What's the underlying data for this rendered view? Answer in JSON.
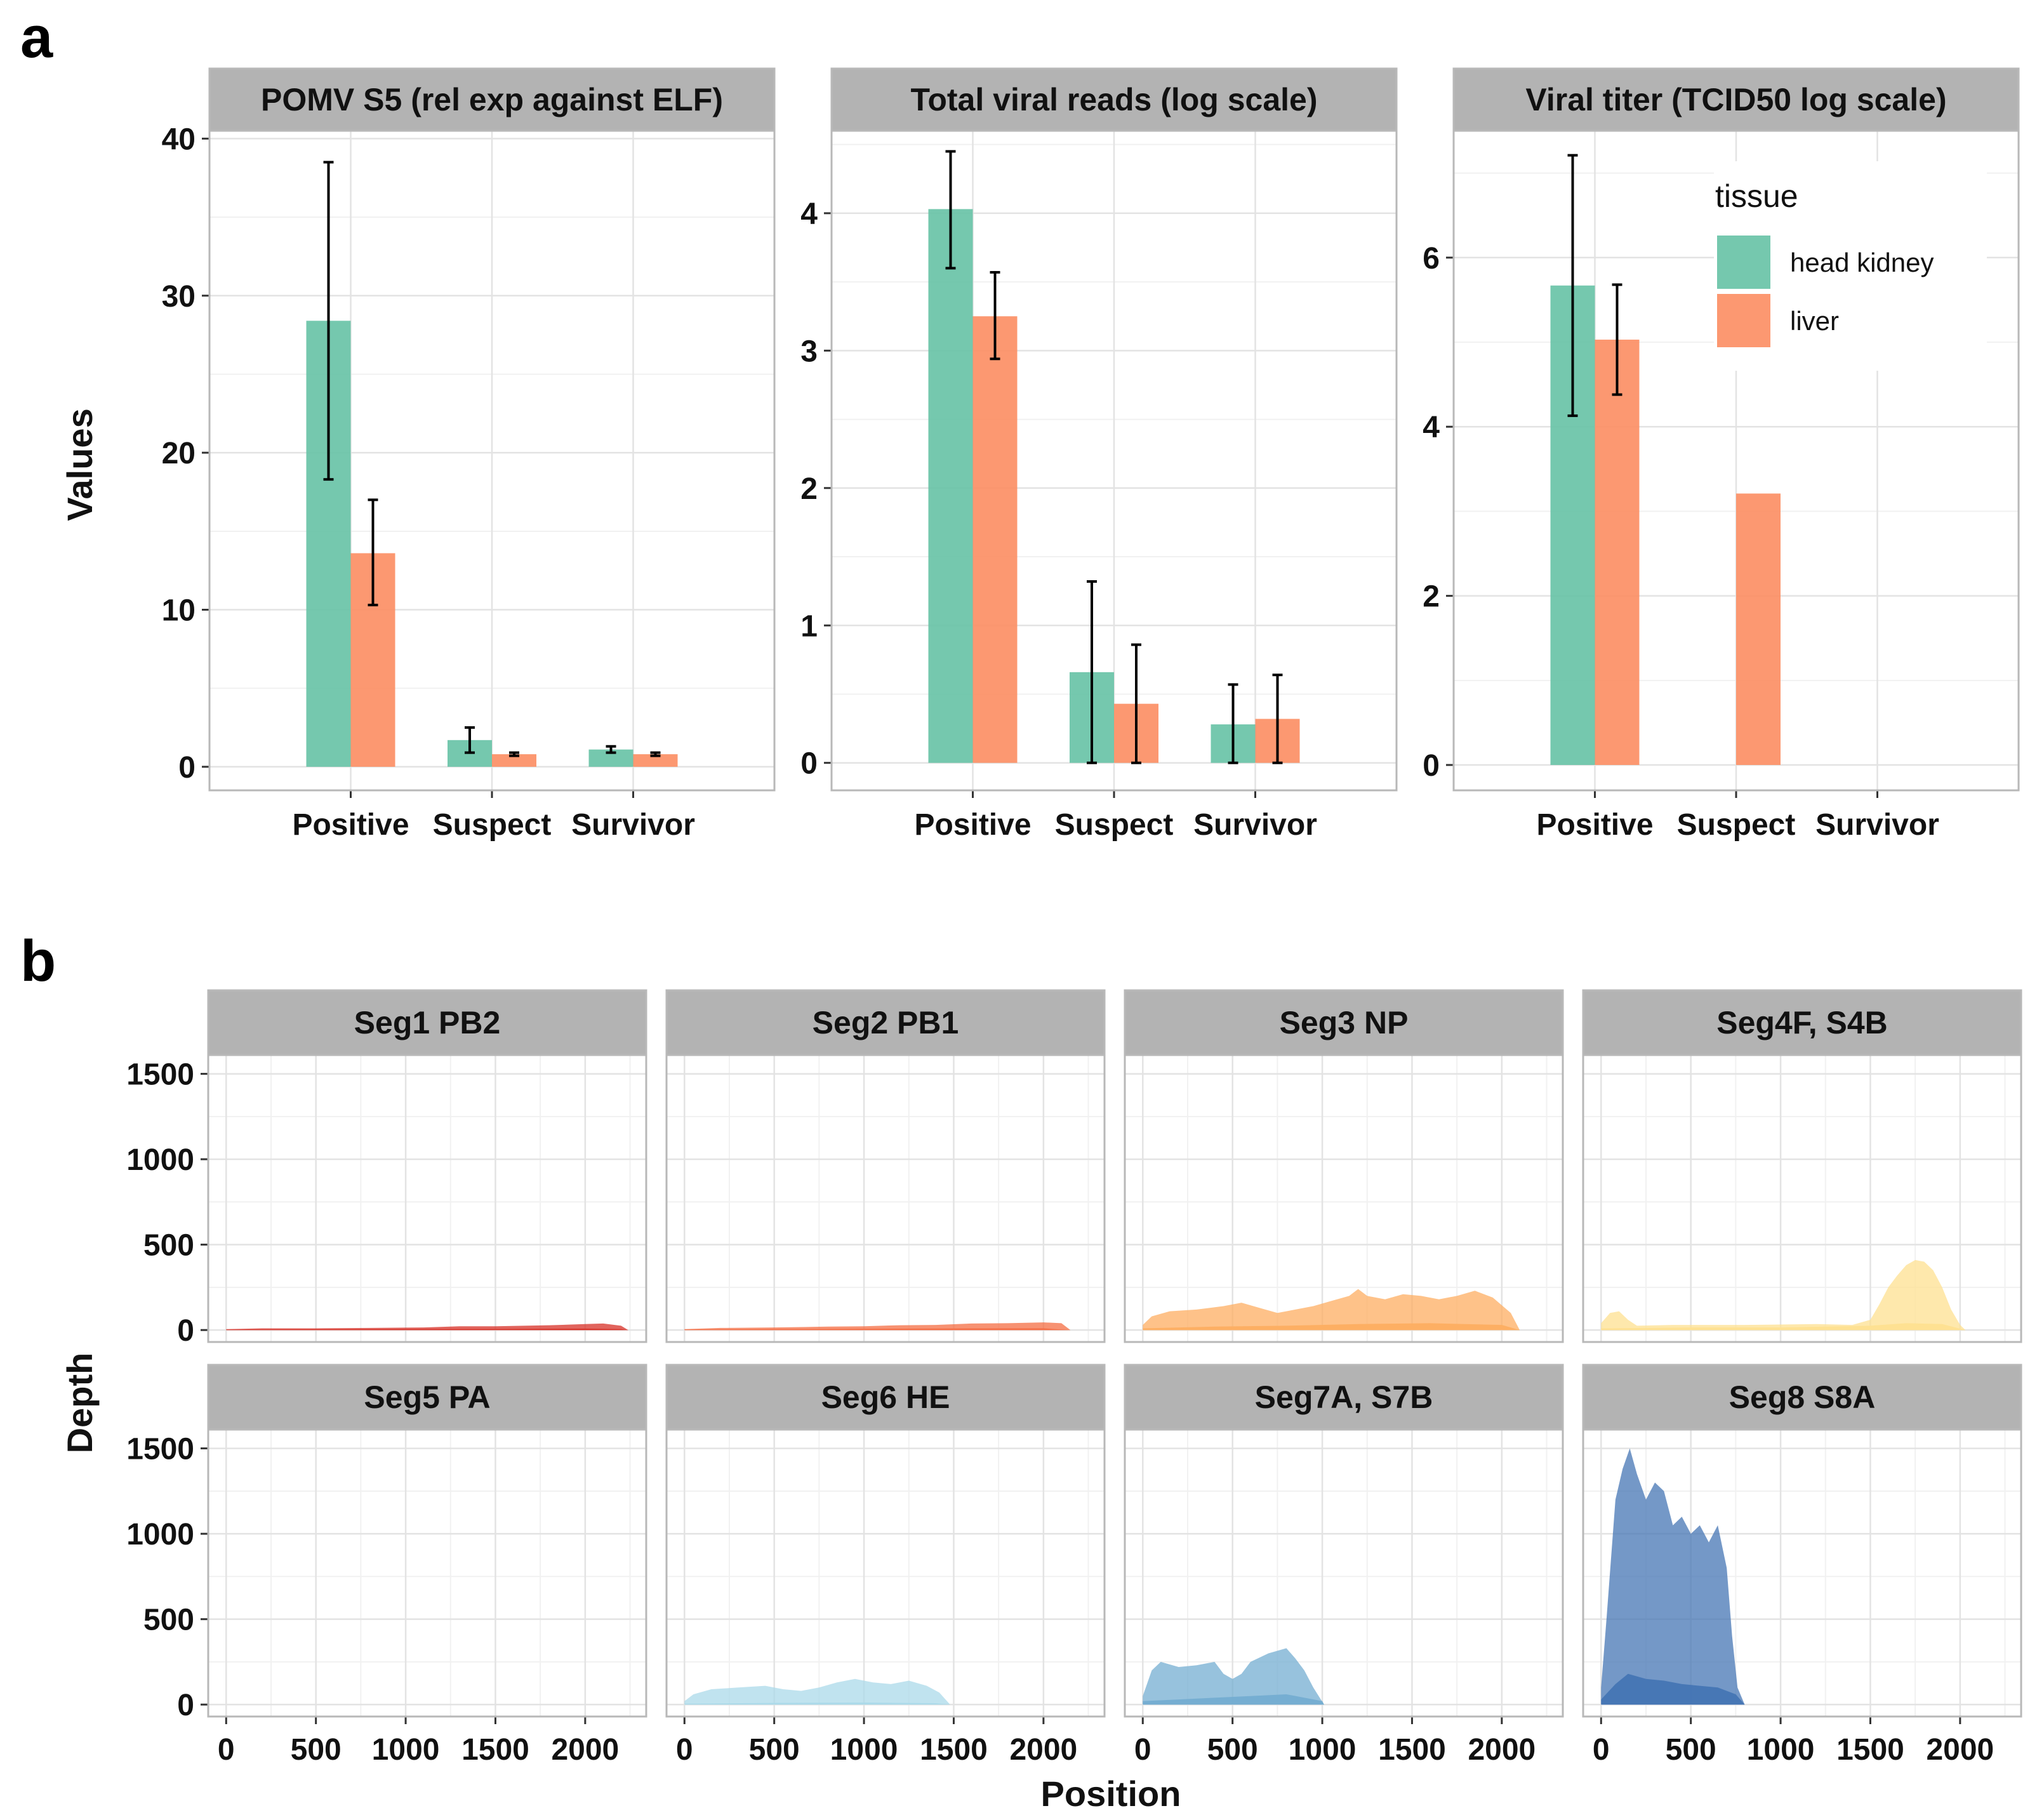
{
  "panel_labels": {
    "a": "a",
    "b": "b"
  },
  "colors": {
    "head_kidney": "#66c2a5",
    "liver": "#fc8d62",
    "strip": "#b3b3b3",
    "grid_major": "#e3e3e3",
    "grid_minor": "#f1f1f1",
    "panel_border": "#b8b8b8",
    "segments": [
      "#d73027",
      "#f46d43",
      "#fdae61",
      "#fee090",
      "#e0f3f8",
      "#abd9e9",
      "#74add1",
      "#4575b4"
    ]
  },
  "chart_data": [
    {
      "type": "bar",
      "panel": "a",
      "ylabel": "Values",
      "categories": [
        "Positive",
        "Suspect",
        "Survivor"
      ],
      "legend": {
        "title": "tissue",
        "entries": [
          "head kidney",
          "liver"
        ],
        "placement": "top-right of third facet"
      },
      "facets": [
        {
          "title": "POMV S5 (rel exp against ELF)",
          "ylim": [
            -1.5,
            40.5
          ],
          "yticks": [
            0,
            10,
            20,
            30,
            40
          ],
          "series": [
            {
              "name": "head kidney",
              "values": [
                28.4,
                1.7,
                1.1
              ],
              "err_low": [
                18.3,
                0.9,
                0.9
              ],
              "err_high": [
                38.5,
                2.5,
                1.3
              ]
            },
            {
              "name": "liver",
              "values": [
                13.6,
                0.8,
                0.8
              ],
              "err_low": [
                10.3,
                0.7,
                0.7
              ],
              "err_high": [
                17.0,
                0.9,
                0.9
              ]
            }
          ]
        },
        {
          "title": "Total viral reads (log scale)",
          "ylim": [
            -0.2,
            4.6
          ],
          "yticks": [
            0,
            1,
            2,
            3,
            4
          ],
          "series": [
            {
              "name": "head kidney",
              "values": [
                4.03,
                0.66,
                0.28
              ],
              "err_low": [
                3.6,
                0.0,
                0.0
              ],
              "err_high": [
                4.45,
                1.32,
                0.57
              ]
            },
            {
              "name": "liver",
              "values": [
                3.25,
                0.43,
                0.32
              ],
              "err_low": [
                2.94,
                0.0,
                0.0
              ],
              "err_high": [
                3.57,
                0.86,
                0.64
              ]
            }
          ]
        },
        {
          "title": "Viral titer (TCID50 log scale)",
          "ylim": [
            -0.3,
            7.5
          ],
          "yticks": [
            0,
            2,
            4,
            6
          ],
          "series": [
            {
              "name": "head kidney",
              "values": [
                5.67,
                null,
                null
              ],
              "err_low": [
                4.13,
                null,
                null
              ],
              "err_high": [
                7.21,
                null,
                null
              ]
            },
            {
              "name": "liver",
              "values": [
                5.03,
                3.21,
                null
              ],
              "err_low": [
                4.38,
                null,
                null
              ],
              "err_high": [
                5.68,
                null,
                null
              ]
            }
          ]
        }
      ]
    },
    {
      "type": "area",
      "panel": "b",
      "xlabel": "Position",
      "ylabel": "Depth",
      "xlim": [
        -100,
        2340
      ],
      "ylim": [
        -70,
        1610
      ],
      "xticks": [
        0,
        500,
        1000,
        1500,
        2000
      ],
      "yticks": [
        0,
        500,
        1000,
        1500
      ],
      "facets": [
        {
          "title": "Seg1 PB2",
          "length": 2240,
          "upper": [
            [
              0,
              5
            ],
            [
              200,
              10
            ],
            [
              500,
              10
            ],
            [
              800,
              12
            ],
            [
              1100,
              15
            ],
            [
              1300,
              22
            ],
            [
              1500,
              22
            ],
            [
              1800,
              28
            ],
            [
              2000,
              35
            ],
            [
              2100,
              38
            ],
            [
              2200,
              25
            ],
            [
              2240,
              0
            ]
          ],
          "lower": [
            [
              0,
              2
            ],
            [
              500,
              4
            ],
            [
              1000,
              5
            ],
            [
              1500,
              6
            ],
            [
              2000,
              8
            ],
            [
              2200,
              5
            ],
            [
              2240,
              0
            ]
          ]
        },
        {
          "title": "Seg2 PB1",
          "length": 2150,
          "upper": [
            [
              0,
              5
            ],
            [
              200,
              12
            ],
            [
              500,
              15
            ],
            [
              800,
              20
            ],
            [
              1000,
              22
            ],
            [
              1200,
              28
            ],
            [
              1400,
              30
            ],
            [
              1600,
              38
            ],
            [
              1800,
              40
            ],
            [
              2000,
              45
            ],
            [
              2100,
              40
            ],
            [
              2150,
              0
            ]
          ],
          "lower": [
            [
              0,
              3
            ],
            [
              500,
              5
            ],
            [
              1000,
              7
            ],
            [
              1500,
              9
            ],
            [
              2000,
              10
            ],
            [
              2150,
              0
            ]
          ]
        },
        {
          "title": "Seg3 NP",
          "length": 2100,
          "upper": [
            [
              0,
              30
            ],
            [
              50,
              80
            ],
            [
              150,
              110
            ],
            [
              300,
              120
            ],
            [
              450,
              140
            ],
            [
              550,
              160
            ],
            [
              650,
              130
            ],
            [
              750,
              100
            ],
            [
              850,
              120
            ],
            [
              950,
              140
            ],
            [
              1050,
              170
            ],
            [
              1150,
              200
            ],
            [
              1200,
              240
            ],
            [
              1250,
              200
            ],
            [
              1350,
              180
            ],
            [
              1450,
              210
            ],
            [
              1550,
              200
            ],
            [
              1650,
              180
            ],
            [
              1750,
              200
            ],
            [
              1850,
              230
            ],
            [
              1950,
              190
            ],
            [
              2050,
              100
            ],
            [
              2100,
              0
            ]
          ],
          "lower": [
            [
              0,
              10
            ],
            [
              400,
              20
            ],
            [
              800,
              25
            ],
            [
              1200,
              35
            ],
            [
              1600,
              40
            ],
            [
              2000,
              30
            ],
            [
              2100,
              0
            ]
          ]
        },
        {
          "title": "Seg4F, S4B",
          "length": 2030,
          "upper": [
            [
              0,
              40
            ],
            [
              50,
              100
            ],
            [
              100,
              110
            ],
            [
              150,
              60
            ],
            [
              200,
              25
            ],
            [
              400,
              30
            ],
            [
              800,
              30
            ],
            [
              1200,
              35
            ],
            [
              1400,
              30
            ],
            [
              1500,
              60
            ],
            [
              1550,
              150
            ],
            [
              1600,
              250
            ],
            [
              1650,
              320
            ],
            [
              1700,
              380
            ],
            [
              1750,
              410
            ],
            [
              1800,
              400
            ],
            [
              1850,
              350
            ],
            [
              1900,
              250
            ],
            [
              1950,
              120
            ],
            [
              2000,
              30
            ],
            [
              2030,
              0
            ]
          ],
          "lower": [
            [
              0,
              10
            ],
            [
              500,
              15
            ],
            [
              1000,
              15
            ],
            [
              1500,
              25
            ],
            [
              1700,
              40
            ],
            [
              1900,
              35
            ],
            [
              2030,
              0
            ]
          ]
        },
        {
          "title": "Seg5 PA",
          "length": 2240,
          "upper": [
            [
              0,
              0
            ],
            [
              2240,
              0
            ]
          ],
          "lower": [
            [
              0,
              0
            ],
            [
              2240,
              0
            ]
          ]
        },
        {
          "title": "Seg6 HE",
          "length": 1480,
          "upper": [
            [
              0,
              20
            ],
            [
              50,
              60
            ],
            [
              150,
              90
            ],
            [
              300,
              100
            ],
            [
              450,
              110
            ],
            [
              550,
              90
            ],
            [
              650,
              80
            ],
            [
              750,
              100
            ],
            [
              850,
              130
            ],
            [
              950,
              150
            ],
            [
              1050,
              130
            ],
            [
              1150,
              120
            ],
            [
              1250,
              140
            ],
            [
              1350,
              110
            ],
            [
              1420,
              70
            ],
            [
              1480,
              0
            ]
          ],
          "lower": [
            [
              0,
              5
            ],
            [
              500,
              10
            ],
            [
              1000,
              12
            ],
            [
              1400,
              8
            ],
            [
              1480,
              0
            ]
          ]
        },
        {
          "title": "Seg7A, S7B",
          "length": 1010,
          "upper": [
            [
              0,
              50
            ],
            [
              50,
              200
            ],
            [
              100,
              250
            ],
            [
              200,
              220
            ],
            [
              300,
              230
            ],
            [
              400,
              250
            ],
            [
              450,
              180
            ],
            [
              500,
              150
            ],
            [
              550,
              180
            ],
            [
              600,
              250
            ],
            [
              700,
              300
            ],
            [
              800,
              330
            ],
            [
              850,
              270
            ],
            [
              900,
              200
            ],
            [
              950,
              100
            ],
            [
              1010,
              0
            ]
          ],
          "lower": [
            [
              0,
              20
            ],
            [
              200,
              30
            ],
            [
              400,
              40
            ],
            [
              600,
              50
            ],
            [
              800,
              60
            ],
            [
              1000,
              20
            ],
            [
              1010,
              0
            ]
          ]
        },
        {
          "title": "Seg8 S8A",
          "length": 800,
          "upper": [
            [
              0,
              100
            ],
            [
              30,
              500
            ],
            [
              80,
              1200
            ],
            [
              120,
              1380
            ],
            [
              160,
              1500
            ],
            [
              200,
              1350
            ],
            [
              250,
              1200
            ],
            [
              300,
              1300
            ],
            [
              350,
              1250
            ],
            [
              400,
              1050
            ],
            [
              450,
              1100
            ],
            [
              500,
              1000
            ],
            [
              550,
              1050
            ],
            [
              600,
              950
            ],
            [
              650,
              1050
            ],
            [
              700,
              800
            ],
            [
              730,
              400
            ],
            [
              760,
              100
            ],
            [
              800,
              0
            ]
          ],
          "lower": [
            [
              0,
              30
            ],
            [
              80,
              120
            ],
            [
              150,
              180
            ],
            [
              250,
              150
            ],
            [
              350,
              140
            ],
            [
              450,
              120
            ],
            [
              550,
              110
            ],
            [
              650,
              100
            ],
            [
              750,
              60
            ],
            [
              800,
              0
            ]
          ]
        }
      ]
    }
  ]
}
